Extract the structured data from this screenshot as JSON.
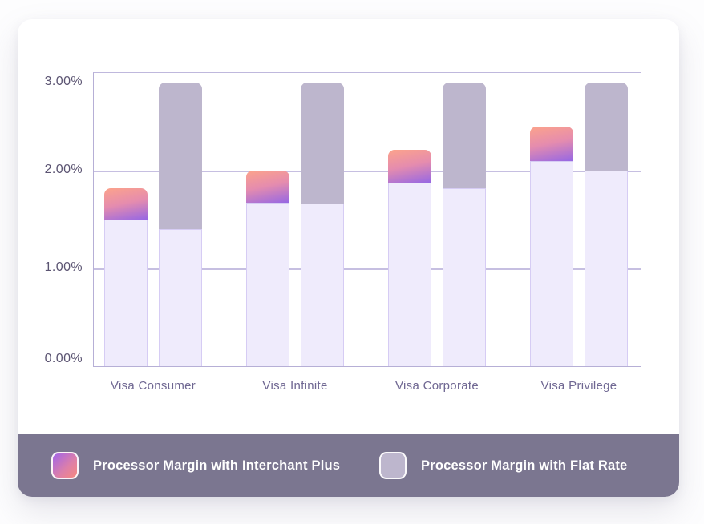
{
  "chart_data": {
    "type": "bar",
    "title": "",
    "categories": [
      "Visa Consumer",
      "Visa Infinite",
      "Visa Corporate",
      "Visa Privilege"
    ],
    "series": [
      {
        "name": "Processor Margin with Interchant Plus",
        "style": "gradient-purple-pink",
        "base_values": [
          1.5,
          1.67,
          1.88,
          2.1
        ],
        "total_values": [
          1.82,
          2.0,
          2.21,
          2.45
        ]
      },
      {
        "name": "Processor Margin with Flat Rate",
        "style": "solid-gray",
        "base_values": [
          1.4,
          1.66,
          1.82,
          2.0
        ],
        "total_values": [
          2.9,
          2.9,
          2.9,
          2.9
        ]
      }
    ],
    "y_ticks": [
      {
        "label": "3.00%",
        "value": 3
      },
      {
        "label": "2.00%",
        "value": 2
      },
      {
        "label": "1.00%",
        "value": 1
      },
      {
        "label": "0.00%",
        "value": 0
      }
    ],
    "ylim": [
      0,
      3
    ],
    "xlabel": "",
    "ylabel": "",
    "grid": true,
    "legend_position": "bottom"
  },
  "legend": {
    "items": [
      {
        "label": "Processor Margin with Interchant Plus",
        "swatch": "gradient-purple-pink"
      },
      {
        "label": "Processor Margin with Flat Rate",
        "swatch": "solid-gray"
      }
    ]
  },
  "colors": {
    "bar_gradient_top": "#FCA38B",
    "bar_gradient_mid": "#E58CAE",
    "bar_gradient_bottom": "#9667E4",
    "flat_bar": "#BDB6CD",
    "bar_base_fill": "#EFEBFC",
    "bar_base_border": "#D6CCF4",
    "gridline": "#C6BFE1",
    "y_tick_text": "#5B5472",
    "category_text": "#6F6792",
    "footer_background": "#7B7690",
    "legend_text": "#FFFFFF",
    "card_background": "#FFFFFF"
  }
}
